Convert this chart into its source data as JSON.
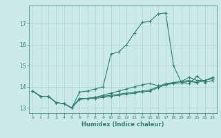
{
  "xlabel": "Humidex (Indice chaleur)",
  "ylabel": "",
  "xlim": [
    -0.5,
    23.5
  ],
  "ylim": [
    12.75,
    17.85
  ],
  "yticks": [
    13,
    14,
    15,
    16,
    17
  ],
  "xticks": [
    0,
    1,
    2,
    3,
    4,
    5,
    6,
    7,
    8,
    9,
    10,
    11,
    12,
    13,
    14,
    15,
    16,
    17,
    18,
    19,
    20,
    21,
    22,
    23
  ],
  "bg_color": "#cceaea",
  "line_color": "#2e7d6e",
  "grid_color": "#aad4d4",
  "lines": [
    [
      13.8,
      13.55,
      13.55,
      13.25,
      13.2,
      13.0,
      13.75,
      13.8,
      13.9,
      14.0,
      15.55,
      15.65,
      16.0,
      16.55,
      17.05,
      17.1,
      17.45,
      17.5,
      15.0,
      14.2,
      14.15,
      14.5,
      14.2,
      14.3
    ],
    [
      13.8,
      13.55,
      13.55,
      13.25,
      13.2,
      13.0,
      13.4,
      13.45,
      13.5,
      13.6,
      13.7,
      13.8,
      13.9,
      14.0,
      14.1,
      14.15,
      14.05,
      14.1,
      14.2,
      14.25,
      14.45,
      14.3,
      14.3,
      14.45
    ],
    [
      13.8,
      13.55,
      13.55,
      13.25,
      13.2,
      13.0,
      13.45,
      13.45,
      13.5,
      13.55,
      13.6,
      13.65,
      13.7,
      13.75,
      13.8,
      13.85,
      14.0,
      14.15,
      14.2,
      14.25,
      14.3,
      14.2,
      14.3,
      14.4
    ],
    [
      13.8,
      13.55,
      13.55,
      13.25,
      13.2,
      13.0,
      13.45,
      13.45,
      13.45,
      13.5,
      13.55,
      13.6,
      13.65,
      13.7,
      13.75,
      13.8,
      13.95,
      14.1,
      14.15,
      14.2,
      14.25,
      14.2,
      14.3,
      14.4
    ]
  ]
}
